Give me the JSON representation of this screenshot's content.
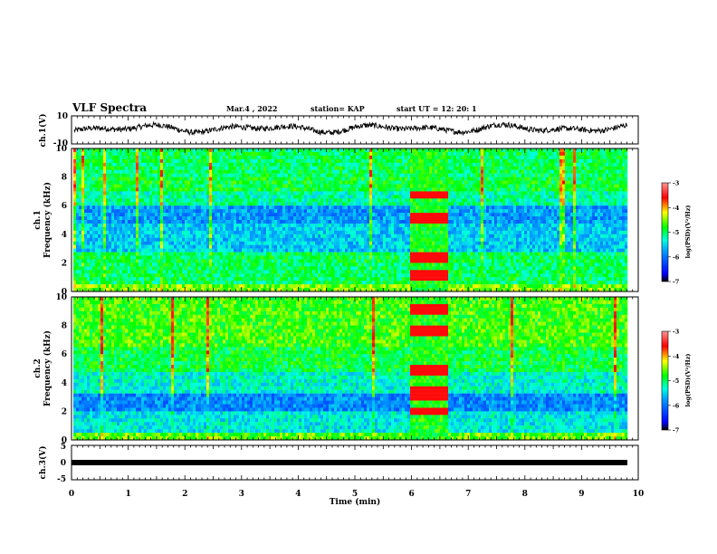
{
  "header": {
    "title": "VLF Spectra",
    "date": "Mar.4 , 2022",
    "station": "station= KAP",
    "start_ut": "start  UT  =   12: 20: 1"
  },
  "colors": {
    "colormap": [
      "#000000",
      "#0000ff",
      "#0096ff",
      "#00ffe0",
      "#00ff00",
      "#ffff00",
      "#ff0000",
      "#ff9696"
    ],
    "waveform": "#000000",
    "burst": "#ff0000"
  },
  "chart_data": [
    {
      "type": "line",
      "name": "waveform-ch1",
      "ylabel": "ch.1(V)",
      "ylim": [
        -10,
        10
      ],
      "yticks": [
        "10",
        "-10"
      ],
      "xlim": [
        0,
        10
      ],
      "description_values": "noisy voltage trace oscillating roughly between -4 and 6 V"
    },
    {
      "type": "heatmap",
      "name": "spectrogram-ch1",
      "ylabel": "ch.1\nFrequency  (kHz)",
      "ylabel_line1": "ch.1",
      "ylabel_line2": "Frequency  (kHz)",
      "ylim": [
        0,
        10
      ],
      "yticks": [
        "0",
        "2",
        "4",
        "6",
        "8",
        "10"
      ],
      "xlim": [
        0,
        10
      ],
      "burst_interval_min": [
        5.95,
        6.6
      ],
      "burst_bands_khz": [
        [
          4.9,
          5.4
        ],
        [
          6.6,
          6.9
        ],
        [
          2.2,
          2.6
        ],
        [
          1.0,
          1.4
        ]
      ],
      "colorbar": {
        "label": "log(PSD)(V²/Hz)",
        "ticks": [
          "-3",
          "-4",
          "-5",
          "-6",
          "-7"
        ],
        "range": [
          -7,
          -3
        ]
      }
    },
    {
      "type": "heatmap",
      "name": "spectrogram-ch2",
      "ylabel": "ch.2\nFrequency  (kHz)",
      "ylabel_line1": "ch.2",
      "ylabel_line2": "Frequency  (kHz)",
      "ylim": [
        0,
        10
      ],
      "yticks": [
        "0",
        "2",
        "4",
        "6",
        "8",
        "10"
      ],
      "xlim": [
        0,
        10
      ],
      "burst_interval_min": [
        5.95,
        6.6
      ],
      "burst_bands_khz": [
        [
          9.0,
          9.4
        ],
        [
          7.4,
          7.8
        ],
        [
          4.7,
          5.1
        ],
        [
          3.0,
          3.5
        ],
        [
          1.8,
          2.1
        ]
      ],
      "colorbar": {
        "label": "log(PSD)(V²/Hz)",
        "ticks": [
          "-3",
          "-4",
          "-5",
          "-6",
          "-7"
        ],
        "range": [
          -7,
          -3
        ]
      }
    },
    {
      "type": "line",
      "name": "waveform-ch3",
      "ylabel": "ch.3(V)",
      "ylim": [
        -5,
        5
      ],
      "yticks": [
        "5",
        "0",
        "-5"
      ],
      "xlim": [
        0,
        10
      ],
      "level_v": 0
    }
  ],
  "xaxis": {
    "label": "Time  (min)",
    "ticks": [
      "0",
      "1",
      "2",
      "3",
      "4",
      "5",
      "6",
      "7",
      "8",
      "9",
      "10"
    ]
  }
}
